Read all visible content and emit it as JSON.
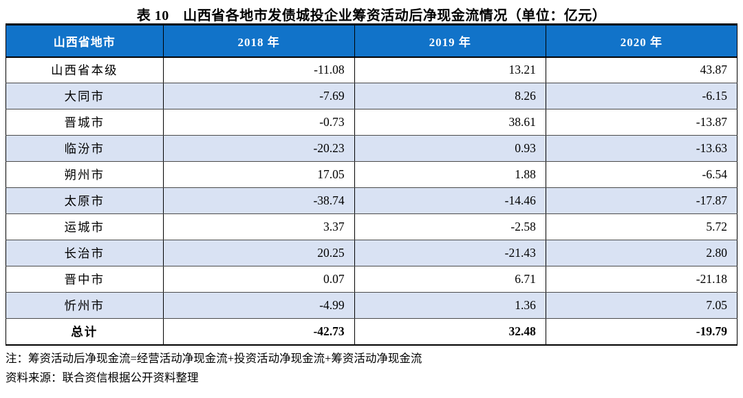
{
  "page": {
    "title": "表 10　山西省各地市发债城投企业筹资活动后净现金流情况（单位：亿元）"
  },
  "table": {
    "columns": [
      "山西省地市",
      "2018 年",
      "2019 年",
      "2020 年"
    ],
    "rows": [
      [
        "山西省本级",
        "-11.08",
        "13.21",
        "43.87"
      ],
      [
        "大同市",
        "-7.69",
        "8.26",
        "-6.15"
      ],
      [
        "晋城市",
        "-0.73",
        "38.61",
        "-13.87"
      ],
      [
        "临汾市",
        "-20.23",
        "0.93",
        "-13.63"
      ],
      [
        "朔州市",
        "17.05",
        "1.88",
        "-6.54"
      ],
      [
        "太原市",
        "-38.74",
        "-14.46",
        "-17.87"
      ],
      [
        "运城市",
        "3.37",
        "-2.58",
        "5.72"
      ],
      [
        "长治市",
        "20.25",
        "-21.43",
        "2.80"
      ],
      [
        "晋中市",
        "0.07",
        "6.71",
        "-21.18"
      ],
      [
        "忻州市",
        "-4.99",
        "1.36",
        "7.05"
      ]
    ],
    "total_row": [
      "总计",
      "-42.73",
      "32.48",
      "-19.79"
    ]
  },
  "notes": {
    "note": "注：筹资活动后净现金流=经营活动净现金流+投资活动净现金流+筹资活动净现金流",
    "source": "资料来源：联合资信根据公开资料整理"
  },
  "colors": {
    "header_bg": "#1173C9",
    "header_text": "#FFFFFF",
    "row_alt_bg": "#D9E2F3",
    "border_dark": "#000000"
  }
}
